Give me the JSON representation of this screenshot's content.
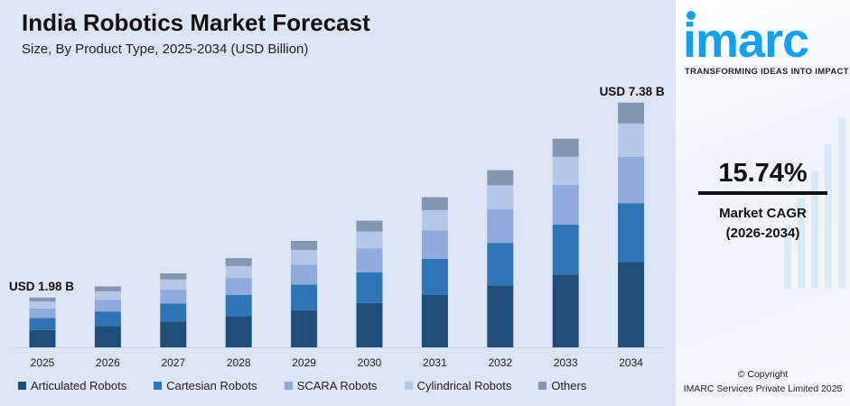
{
  "header": {
    "title": "India Robotics Market Forecast",
    "subtitle": "Size, By Product Type, 2025-2034 (USD Billion)"
  },
  "chart_data": {
    "type": "bar",
    "stacked": true,
    "title": "India Robotics Market Forecast",
    "subtitle": "Size, By Product Type, 2025-2034 (USD Billion)",
    "categories": [
      "2025",
      "2026",
      "2027",
      "2028",
      "2029",
      "2030",
      "2031",
      "2032",
      "2033",
      "2034"
    ],
    "series": [
      {
        "name": "Articulated Robots",
        "color": "#1f4e79",
        "values": [
          0.69,
          0.8,
          0.93,
          1.07,
          1.24,
          1.44,
          1.67,
          1.93,
          2.23,
          2.58
        ]
      },
      {
        "name": "Cartesian Robots",
        "color": "#2e75b6",
        "values": [
          0.48,
          0.55,
          0.64,
          0.74,
          0.85,
          0.99,
          1.14,
          1.32,
          1.53,
          1.77
        ]
      },
      {
        "name": "SCARA Robots",
        "color": "#8faadc",
        "values": [
          0.38,
          0.44,
          0.5,
          0.58,
          0.67,
          0.78,
          0.9,
          1.05,
          1.21,
          1.4
        ]
      },
      {
        "name": "Cylindrical Robots",
        "color": "#b4c7e7",
        "values": [
          0.27,
          0.31,
          0.36,
          0.41,
          0.48,
          0.55,
          0.64,
          0.74,
          0.86,
          1.0
        ]
      },
      {
        "name": "Others",
        "color": "#8497b0",
        "values": [
          0.16,
          0.19,
          0.22,
          0.27,
          0.31,
          0.35,
          0.41,
          0.47,
          0.55,
          0.63
        ]
      }
    ],
    "annotations": [
      {
        "category": "2025",
        "text": "USD 1.98 B"
      },
      {
        "category": "2034",
        "text": "USD 7.38 B"
      }
    ],
    "legend_position": "bottom",
    "grid": false,
    "y_axis_visible": false
  },
  "sidebar": {
    "brand": "imarc",
    "tagline": "TRANSFORMING IDEAS INTO IMPACT",
    "cagr_value": "15.74%",
    "cagr_label": "Market CAGR",
    "cagr_period": "(2026-2034)",
    "copyright": "© Copyright",
    "company": "IMARC Services Private Limited 2025"
  }
}
